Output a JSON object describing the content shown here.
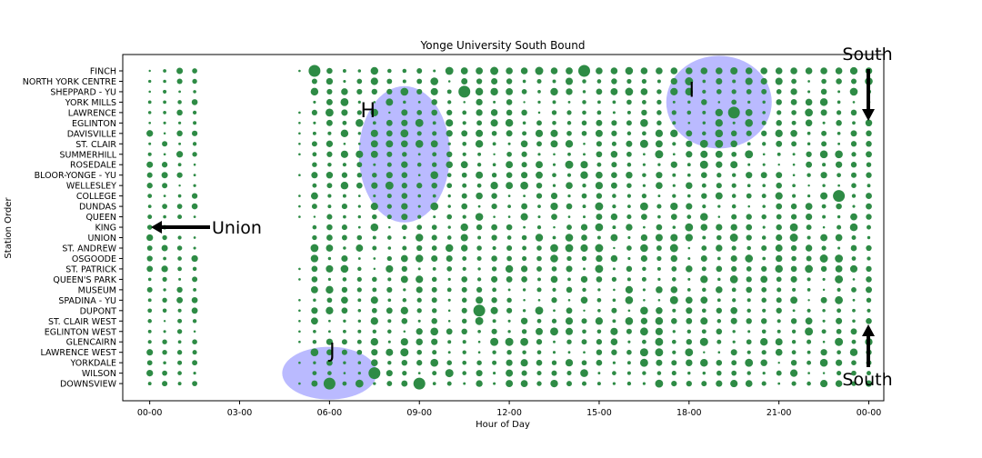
{
  "chart_data": {
    "type": "scatter",
    "title": "Yonge University South Bound",
    "xlabel": "Hour of Day",
    "ylabel": "Station Order",
    "x_ticks": [
      "00-00",
      "03-00",
      "06-00",
      "09-00",
      "12-00",
      "15-00",
      "18-00",
      "21-00",
      "00-00"
    ],
    "xlim_hours": [
      -0.9,
      24.5
    ],
    "stations": [
      "FINCH",
      "NORTH YORK CENTRE",
      "SHEPPARD - YU",
      "YORK MILLS",
      "LAWRENCE",
      "EGLINTON",
      "DAVISVILLE",
      "ST. CLAIR",
      "SUMMERHILL",
      "ROSEDALE",
      "BLOOR-YONGE - YU",
      "WELLESLEY",
      "COLLEGE",
      "DUNDAS",
      "QUEEN",
      "KING",
      "UNION",
      "ST. ANDREW",
      "OSGOODE",
      "ST. PATRICK",
      "QUEEN'S PARK",
      "MUSEUM",
      "SPADINA - YU",
      "DUPONT",
      "ST. CLAIR WEST",
      "EGLINTON WEST",
      "GLENCAIRN",
      "LAWRENCE WEST",
      "YORKDALE",
      "WILSON",
      "DOWNSVIEW"
    ],
    "point_color": "#2e8b45",
    "highlight_color": "#8c8cff",
    "grid": false,
    "legend": "none",
    "highlights": [
      {
        "label": "H",
        "hour_center": 8.5,
        "station_center": 8.0
      },
      {
        "label": "I",
        "hour_center": 19.0,
        "station_center": 3.0
      },
      {
        "label": "J",
        "hour_center": 6.0,
        "station_center": 29.0
      }
    ],
    "notable_points": [
      {
        "hour": 5.5,
        "station": "FINCH",
        "size": "large"
      },
      {
        "hour": 14.5,
        "station": "FINCH",
        "size": "large"
      },
      {
        "hour": 10.5,
        "station": "SHEPPARD - YU",
        "size": "large"
      },
      {
        "hour": 19.5,
        "station": "LAWRENCE",
        "size": "large"
      },
      {
        "hour": 11.0,
        "station": "DUPONT",
        "size": "large"
      },
      {
        "hour": 23.0,
        "station": "COLLEGE",
        "size": "large"
      },
      {
        "hour": 6.0,
        "station": "DOWNSVIEW",
        "size": "large"
      },
      {
        "hour": 9.0,
        "station": "DOWNSVIEW",
        "size": "large"
      },
      {
        "hour": 7.5,
        "station": "WILSON",
        "size": "large"
      }
    ]
  },
  "annotations": {
    "south_top": "South",
    "south_bottom": "South",
    "union": "Union"
  }
}
